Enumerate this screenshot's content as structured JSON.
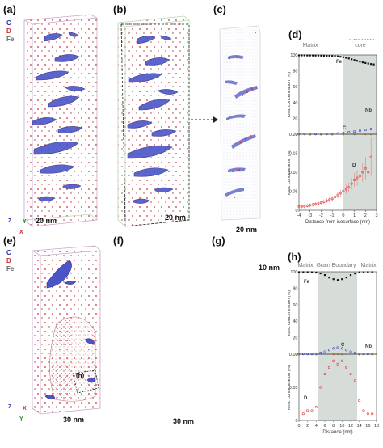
{
  "panels": {
    "a": "(a)",
    "b": "(b)",
    "c": "(c)",
    "d": "(d)",
    "e": "(e)",
    "f": "(f)",
    "g": "(g)",
    "h": "(h)"
  },
  "legend_top": [
    {
      "text": "C",
      "color": "#2a2f9c"
    },
    {
      "text": "D",
      "color": "#d42a2a"
    },
    {
      "text": "Fe",
      "color": "#666666"
    }
  ],
  "legend_bottom": [
    {
      "text": "C",
      "color": "#2a2f9c"
    },
    {
      "text": "D",
      "color": "#d42a2a"
    },
    {
      "text": "Fe",
      "color": "#666666"
    }
  ],
  "scale_bars": {
    "a": "20 nm",
    "b": "20 nm",
    "c": "20 nm",
    "e": "30 nm",
    "f": "30 nm",
    "g": "10 nm"
  },
  "axis_letters": {
    "z": "Z",
    "y": "Y",
    "x": "X"
  },
  "box_label_e": "(h)",
  "colors": {
    "carbon": "#3d44c8",
    "deuterium": "#e03a3a",
    "iron": "#111111",
    "shade": "#d6ddd8"
  },
  "chart_data": [
    {
      "type": "line",
      "panel": "d",
      "zone_labels": [
        "Matrix",
        "Dislocation",
        "core"
      ],
      "xlabel": "Distance from isosurface (nm)",
      "ylabel_top": "Ionic concentration (%)",
      "ylabel_bottom": "Ionic concentration (%)",
      "x_ticks": [
        "-4",
        "-3",
        "-2",
        "-1",
        "0",
        "1",
        "2",
        "3"
      ],
      "upper_y_ticks": [
        "0",
        "20",
        "40",
        "60",
        "80",
        "100"
      ],
      "lower_y_ticks": [
        "0",
        "0.05",
        "0.10",
        "0.15",
        "0.20"
      ],
      "xlim": [
        -4,
        3
      ],
      "shaded_from": 0,
      "series": [
        {
          "name": "Fe",
          "x": [
            -4,
            -3.75,
            -3.5,
            -3.25,
            -3,
            -2.75,
            -2.5,
            -2.25,
            -2,
            -1.75,
            -1.5,
            -1.25,
            -1,
            -0.75,
            -0.5,
            -0.25,
            0,
            0.25,
            0.5,
            0.75,
            1,
            1.25,
            1.5,
            1.75,
            2,
            2.25,
            2.5,
            2.75
          ],
          "y": [
            99.5,
            99.5,
            99.5,
            99.4,
            99.4,
            99.4,
            99.3,
            99.3,
            99.2,
            99.1,
            99,
            98.9,
            98.7,
            98.5,
            98.2,
            97.8,
            97.2,
            96.5,
            95.6,
            94.6,
            93.6,
            92.6,
            91.6,
            90.7,
            89.9,
            89.2,
            88.6,
            88.1
          ]
        },
        {
          "name": "C",
          "x": [
            -4,
            -3.5,
            -3,
            -2.5,
            -2,
            -1.5,
            -1,
            -0.5,
            0,
            0.5,
            1,
            1.5,
            2,
            2.5
          ],
          "y": [
            0.2,
            0.2,
            0.2,
            0.3,
            0.3,
            0.4,
            0.6,
            0.9,
            1.5,
            2.5,
            3.5,
            4.5,
            5.5,
            6.5
          ]
        },
        {
          "name": "Nb",
          "x": [
            -4,
            -3,
            -2,
            -1,
            0,
            1,
            2,
            2.5
          ],
          "y": [
            0,
            0,
            0,
            0,
            0,
            0.1,
            0.2,
            0.3
          ]
        },
        {
          "name": "D",
          "x": [
            -4,
            -3.75,
            -3.5,
            -3.25,
            -3,
            -2.75,
            -2.5,
            -2.25,
            -2,
            -1.75,
            -1.5,
            -1.25,
            -1,
            -0.75,
            -0.5,
            -0.25,
            0,
            0.25,
            0.5,
            0.75,
            1,
            1.25,
            1.5,
            1.75,
            2,
            2.25,
            2.5
          ],
          "y": [
            0.01,
            0.01,
            0.01,
            0.012,
            0.013,
            0.015,
            0.016,
            0.018,
            0.02,
            0.022,
            0.025,
            0.028,
            0.03,
            0.035,
            0.04,
            0.045,
            0.05,
            0.055,
            0.06,
            0.07,
            0.08,
            0.085,
            0.09,
            0.1,
            0.11,
            0.1,
            0.14
          ],
          "err": [
            0.005,
            0.005,
            0.005,
            0.005,
            0.005,
            0.005,
            0.005,
            0.005,
            0.005,
            0.006,
            0.006,
            0.007,
            0.007,
            0.008,
            0.008,
            0.009,
            0.01,
            0.012,
            0.013,
            0.015,
            0.018,
            0.02,
            0.022,
            0.025,
            0.03,
            0.04,
            0.05
          ]
        }
      ]
    },
    {
      "type": "line",
      "panel": "h",
      "zone_labels": [
        "Matrix",
        "Grain Boundary",
        "Matrix"
      ],
      "xlabel": "Distance (nm)",
      "ylabel_top": "Ionic concentration (%)",
      "ylabel_bottom": "Ionic concentration (%)",
      "x_ticks": [
        "0",
        "2",
        "4",
        "6",
        "8",
        "10",
        "12",
        "14",
        "16",
        "18"
      ],
      "upper_y_ticks": [
        "0",
        "20",
        "40",
        "60",
        "80",
        "100"
      ],
      "lower_y_ticks": [
        "0",
        "0.05",
        "0.10"
      ],
      "xlim": [
        0,
        18
      ],
      "shaded_range": [
        4.5,
        13.5
      ],
      "series": [
        {
          "name": "Fe",
          "x": [
            0,
            1,
            2,
            3,
            4,
            5,
            6,
            7,
            8,
            9,
            10,
            11,
            12,
            13,
            14,
            15,
            16,
            17
          ],
          "y": [
            99.5,
            99.5,
            99.5,
            99.4,
            99,
            98,
            96,
            93,
            91,
            90,
            91,
            93,
            96,
            98,
            99.2,
            99.4,
            99.5,
            99.5
          ]
        },
        {
          "name": "C",
          "x": [
            0,
            1,
            2,
            3,
            4,
            5,
            6,
            7,
            8,
            9,
            10,
            11,
            12,
            13,
            14,
            15,
            16,
            17
          ],
          "y": [
            0.2,
            0.2,
            0.2,
            0.3,
            0.6,
            1.5,
            3,
            5,
            7,
            8,
            7,
            5,
            3,
            1.5,
            0.5,
            0.3,
            0.2,
            0.2
          ]
        },
        {
          "name": "Nb",
          "x": [
            0,
            4,
            8,
            9,
            10,
            14,
            17
          ],
          "y": [
            0,
            0,
            0.1,
            0.2,
            0.1,
            0,
            0
          ]
        },
        {
          "name": "D",
          "x": [
            1,
            2,
            3,
            4,
            5,
            6,
            7,
            8,
            9,
            10,
            11,
            12,
            13,
            14,
            15,
            16,
            17
          ],
          "y": [
            0.01,
            0.015,
            0.015,
            0.02,
            0.05,
            0.07,
            0.08,
            0.09,
            0.085,
            0.09,
            0.08,
            0.07,
            0.06,
            0.03,
            0.015,
            0.01,
            0.01
          ]
        }
      ]
    }
  ]
}
